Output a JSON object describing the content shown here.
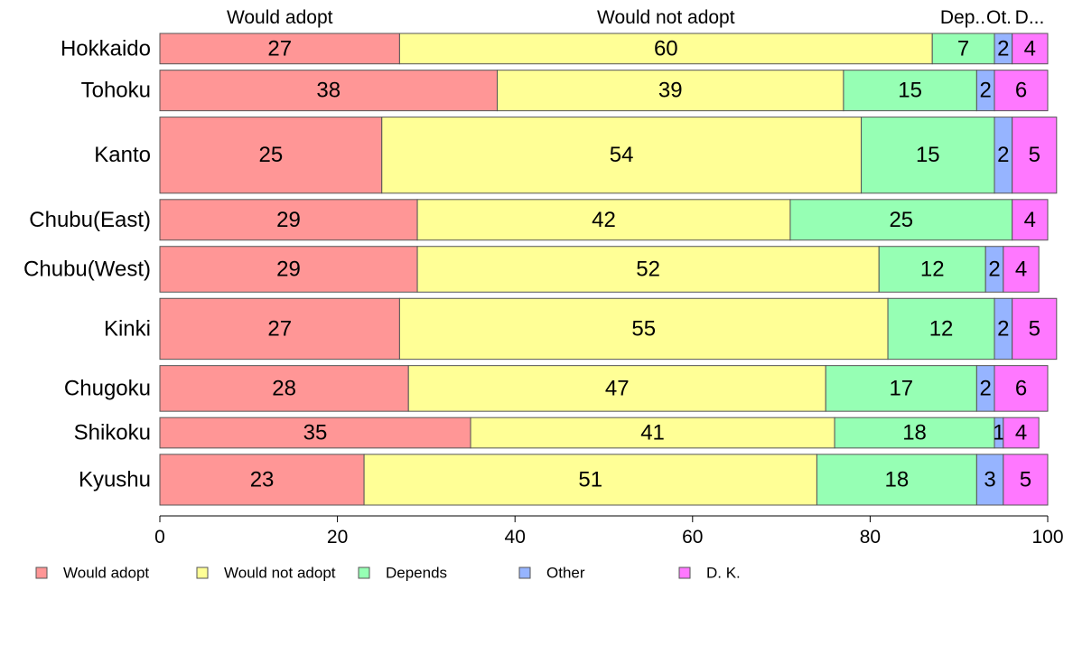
{
  "chart_data": {
    "type": "bar",
    "orientation": "horizontal",
    "stacked": true,
    "percent": true,
    "categories": [
      "Hokkaido",
      "Tohoku",
      "Kanto",
      "Chubu(East)",
      "Chubu(West)",
      "Kinki",
      "Chugoku",
      "Shikoku",
      "Kyushu"
    ],
    "series": [
      {
        "name": "Would adopt",
        "color": "#ff9696",
        "values": [
          27,
          38,
          25,
          29,
          29,
          27,
          28,
          35,
          23
        ]
      },
      {
        "name": "Would not adopt",
        "color": "#ffff96",
        "values": [
          60,
          39,
          54,
          42,
          52,
          55,
          47,
          41,
          51
        ]
      },
      {
        "name": "Depends",
        "color": "#96ffb4",
        "values": [
          7,
          15,
          15,
          25,
          12,
          12,
          17,
          18,
          18
        ]
      },
      {
        "name": "Other",
        "color": "#96b4ff",
        "values": [
          2,
          2,
          2,
          0,
          2,
          2,
          2,
          1,
          3
        ]
      },
      {
        "name": "D. K.",
        "color": "#ff78ff",
        "values": [
          4,
          6,
          5,
          4,
          4,
          5,
          6,
          4,
          5
        ]
      }
    ],
    "row_weights": [
      6,
      8,
      15,
      8,
      9,
      12,
      9,
      6,
      10
    ],
    "top_labels": [
      "Would adopt",
      "Would not adopt",
      "Dep..",
      "Ot.",
      "D..."
    ],
    "xlim": [
      0,
      100
    ],
    "xticks": [
      0,
      20,
      40,
      60,
      80,
      100
    ],
    "legend_position": "bottom",
    "grid": false
  }
}
